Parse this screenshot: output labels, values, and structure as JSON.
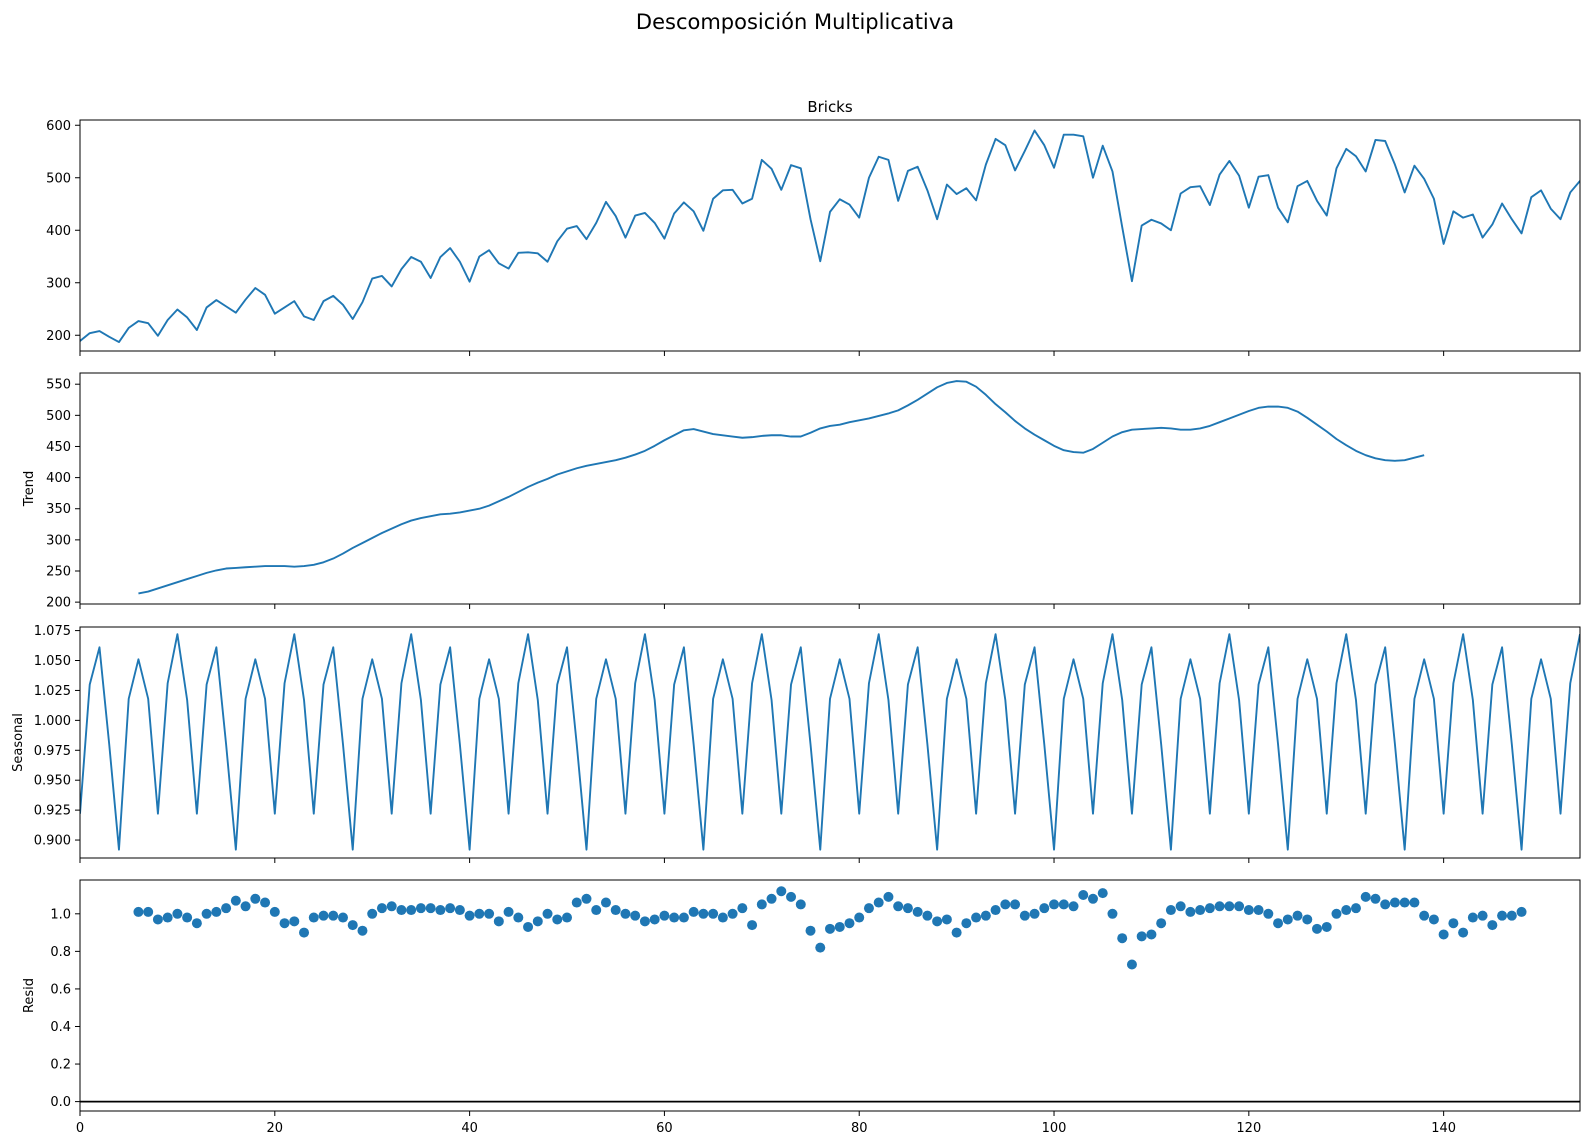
{
  "figure": {
    "suptitle": "Descomposición Multiplicativa"
  },
  "chart_data": [
    {
      "type": "line",
      "title": "Bricks",
      "ylabel": "",
      "xlim": [
        0,
        154
      ],
      "ylim": [
        170,
        610
      ],
      "yticks": [
        200,
        300,
        400,
        500,
        600
      ],
      "xticks": [
        0,
        20,
        40,
        60,
        80,
        100,
        120,
        140
      ],
      "show_xtick_labels": false,
      "color": "#1f77b4",
      "values": [
        189,
        204,
        208,
        197,
        187,
        214,
        227,
        223,
        199,
        229,
        249,
        234,
        210,
        253,
        267,
        255,
        243,
        268,
        290,
        277,
        241,
        253,
        265,
        236,
        229,
        265,
        275,
        258,
        231,
        263,
        308,
        313,
        293,
        326,
        349,
        340,
        309,
        349,
        366,
        340,
        302,
        350,
        362,
        337,
        327,
        357,
        358,
        356,
        340,
        379,
        403,
        408,
        383,
        414,
        454,
        427,
        386,
        428,
        433,
        414,
        384,
        432,
        453,
        436,
        399,
        460,
        476,
        477,
        451,
        460,
        534,
        517,
        477,
        524,
        518,
        421,
        341,
        435,
        459,
        449,
        424,
        500,
        540,
        534,
        456,
        513,
        521,
        476,
        421,
        487,
        469,
        480,
        457,
        525,
        574,
        562,
        514,
        551,
        590,
        562,
        519,
        582,
        582,
        579,
        500,
        561,
        512,
        406,
        303,
        409,
        420,
        413,
        400,
        470,
        482,
        484,
        448,
        506,
        532,
        504,
        443,
        502,
        505,
        443,
        415,
        484,
        494,
        456,
        428,
        518,
        555,
        541,
        512,
        572,
        570,
        525,
        472,
        523,
        498,
        460,
        374,
        436,
        424,
        430,
        386,
        411,
        451,
        421,
        394,
        463,
        476,
        441,
        421,
        472,
        494
      ]
    },
    {
      "type": "line",
      "title": "",
      "ylabel": "Trend",
      "xlim": [
        0,
        154
      ],
      "ylim": [
        197,
        568
      ],
      "yticks": [
        200,
        250,
        300,
        350,
        400,
        450,
        500,
        550
      ],
      "xticks": [
        0,
        20,
        40,
        60,
        80,
        100,
        120,
        140
      ],
      "show_xtick_labels": false,
      "color": "#1f77b4",
      "x_start": 6,
      "values": [
        214,
        217,
        222,
        227,
        232,
        237,
        242,
        247,
        251,
        254,
        255,
        256,
        257,
        258,
        258,
        258,
        257,
        258,
        260,
        264,
        270,
        278,
        287,
        295,
        303,
        311,
        318,
        325,
        331,
        335,
        338,
        341,
        342,
        344,
        347,
        350,
        355,
        362,
        369,
        377,
        385,
        392,
        398,
        405,
        410,
        415,
        419,
        422,
        425,
        428,
        432,
        437,
        443,
        451,
        460,
        468,
        476,
        478,
        474,
        470,
        468,
        466,
        464,
        465,
        467,
        468,
        468,
        466,
        466,
        472,
        479,
        483,
        485,
        489,
        492,
        495,
        499,
        503,
        508,
        516,
        525,
        535,
        545,
        552,
        555,
        554,
        546,
        533,
        518,
        505,
        491,
        479,
        469,
        460,
        451,
        444,
        441,
        440,
        446,
        456,
        466,
        473,
        477,
        478,
        479,
        480,
        479,
        477,
        477,
        479,
        483,
        489,
        495,
        501,
        507,
        512,
        514,
        514,
        512,
        506,
        496,
        485,
        474,
        462,
        452,
        443,
        436,
        431,
        428,
        427,
        428,
        432,
        436
      ]
    },
    {
      "type": "line",
      "title": "",
      "ylabel": "Seasonal",
      "xlim": [
        0,
        154
      ],
      "ylim": [
        0.885,
        1.078
      ],
      "yticks": [
        0.9,
        0.925,
        0.95,
        0.975,
        1.0,
        1.025,
        1.05,
        1.075
      ],
      "ytick_labels": [
        "0.900",
        "0.925",
        "0.950",
        "0.975",
        "1.000",
        "1.025",
        "1.050",
        "1.075"
      ],
      "xticks": [
        0,
        20,
        40,
        60,
        80,
        100,
        120,
        140
      ],
      "show_xtick_labels": false,
      "color": "#1f77b4",
      "period": 12,
      "pattern": [
        0.922,
        1.03,
        1.061,
        0.98,
        0.892,
        1.018,
        1.051,
        1.018,
        0.922,
        1.031,
        1.072,
        1.017
      ]
    },
    {
      "type": "scatter",
      "title": "",
      "ylabel": "Resid",
      "xlim": [
        0,
        154
      ],
      "ylim": [
        -0.05,
        1.18
      ],
      "yticks": [
        0.0,
        0.2,
        0.4,
        0.6,
        0.8,
        1.0
      ],
      "ytick_labels": [
        "0.0",
        "0.2",
        "0.4",
        "0.6",
        "0.8",
        "1.0"
      ],
      "xticks": [
        0,
        20,
        40,
        60,
        80,
        100,
        120,
        140
      ],
      "xtick_labels": [
        "0",
        "20",
        "40",
        "60",
        "80",
        "100",
        "120",
        "140"
      ],
      "show_xtick_labels": true,
      "color": "#1f77b4",
      "hline": 0.0,
      "x_start": 6,
      "values": [
        1.01,
        1.01,
        0.97,
        0.98,
        1.0,
        0.98,
        0.95,
        1.0,
        1.01,
        1.03,
        1.07,
        1.04,
        1.08,
        1.06,
        1.01,
        0.95,
        0.96,
        0.9,
        0.98,
        0.99,
        0.99,
        0.98,
        0.94,
        0.91,
        1.0,
        1.03,
        1.04,
        1.02,
        1.02,
        1.03,
        1.03,
        1.02,
        1.03,
        1.02,
        0.99,
        1.0,
        1.0,
        0.96,
        1.01,
        0.98,
        0.93,
        0.96,
        1.0,
        0.97,
        0.98,
        1.06,
        1.08,
        1.02,
        1.06,
        1.02,
        1.0,
        0.99,
        0.96,
        0.97,
        0.99,
        0.98,
        0.98,
        1.01,
        1.0,
        1.0,
        0.98,
        1.0,
        1.03,
        0.94,
        1.05,
        1.08,
        1.12,
        1.09,
        1.05,
        0.91,
        0.82,
        0.92,
        0.93,
        0.95,
        0.98,
        1.03,
        1.06,
        1.09,
        1.04,
        1.03,
        1.01,
        0.99,
        0.96,
        0.97,
        0.9,
        0.95,
        0.98,
        0.99,
        1.02,
        1.05,
        1.05,
        0.99,
        1.0,
        1.03,
        1.05,
        1.05,
        1.04,
        1.1,
        1.08,
        1.11,
        1.0,
        0.87,
        0.73,
        0.88,
        0.89,
        0.95,
        1.02,
        1.04,
        1.01,
        1.02,
        1.03,
        1.04,
        1.04,
        1.04,
        1.02,
        1.02,
        1.0,
        0.95,
        0.97,
        0.99,
        0.97,
        0.92,
        0.93,
        1.0,
        1.02,
        1.03,
        1.09,
        1.08,
        1.05,
        1.06,
        1.06,
        1.06,
        0.99,
        0.97,
        0.89,
        0.95,
        0.9,
        0.98,
        0.99,
        0.94,
        0.99,
        0.99,
        1.01
      ]
    }
  ]
}
